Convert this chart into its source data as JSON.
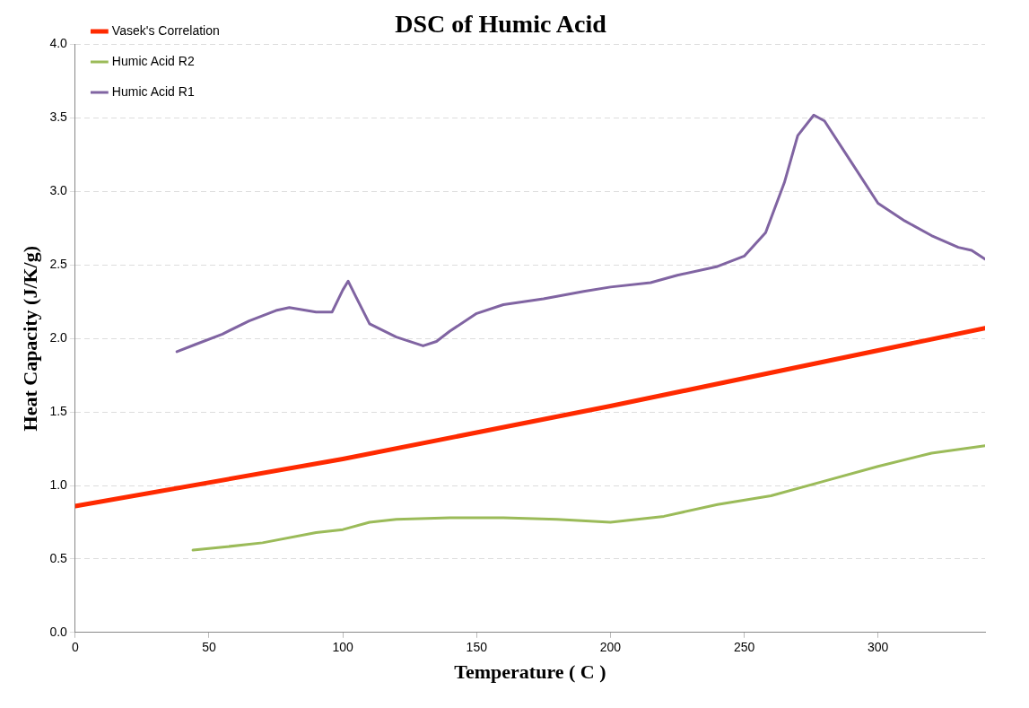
{
  "chart_data": {
    "type": "line",
    "title": "DSC of Humic Acid",
    "xlabel": "Temperature ( C )",
    "ylabel": "Heat Capacity (J/K/g)",
    "xlim": [
      0,
      340
    ],
    "xticks": [
      0,
      50,
      100,
      150,
      200,
      250,
      300
    ],
    "ylim": [
      0,
      4
    ],
    "yticks": [
      {
        "value": 0,
        "label": "0.0"
      },
      {
        "value": 0.5,
        "label": "0.5"
      },
      {
        "value": 1,
        "label": "1.0"
      },
      {
        "value": 1.5,
        "label": "1.5"
      },
      {
        "value": 2,
        "label": "2.0"
      },
      {
        "value": 2.5,
        "label": "2.5"
      },
      {
        "value": 3,
        "label": "3.0"
      },
      {
        "value": 3.5,
        "label": "3.5"
      },
      {
        "value": 4,
        "label": "4.0"
      }
    ],
    "grid": "y",
    "legend": "top left",
    "marker": "none",
    "line_style": "solid",
    "series": [
      {
        "name": "Vasek's Correlation",
        "color": "#ff2a00",
        "x": [
          0,
          100,
          200,
          340
        ],
        "values": [
          0.86,
          1.18,
          1.54,
          2.07
        ]
      },
      {
        "name": "Humic Acid R2",
        "color": "#9bbb59",
        "x": [
          44,
          55,
          70,
          90,
          100,
          110,
          120,
          140,
          160,
          180,
          200,
          220,
          240,
          260,
          280,
          300,
          320,
          340
        ],
        "values": [
          0.56,
          0.58,
          0.61,
          0.68,
          0.7,
          0.75,
          0.77,
          0.78,
          0.78,
          0.77,
          0.75,
          0.79,
          0.87,
          0.93,
          1.03,
          1.13,
          1.22,
          1.27
        ]
      },
      {
        "name": "Humic Acid R1",
        "color": "#8064a2",
        "x": [
          38,
          45,
          55,
          65,
          75,
          80,
          90,
          96,
          100,
          102,
          105,
          110,
          120,
          130,
          135,
          140,
          150,
          160,
          175,
          190,
          200,
          215,
          225,
          240,
          250,
          258,
          265,
          270,
          276,
          280,
          290,
          300,
          310,
          320,
          330,
          335,
          340
        ],
        "values": [
          1.91,
          1.96,
          2.03,
          2.12,
          2.19,
          2.21,
          2.18,
          2.18,
          2.33,
          2.39,
          2.28,
          2.1,
          2.01,
          1.95,
          1.98,
          2.05,
          2.17,
          2.23,
          2.27,
          2.32,
          2.35,
          2.38,
          2.43,
          2.49,
          2.56,
          2.72,
          3.06,
          3.38,
          3.52,
          3.48,
          3.2,
          2.92,
          2.8,
          2.7,
          2.62,
          2.6,
          2.54
        ]
      }
    ]
  }
}
